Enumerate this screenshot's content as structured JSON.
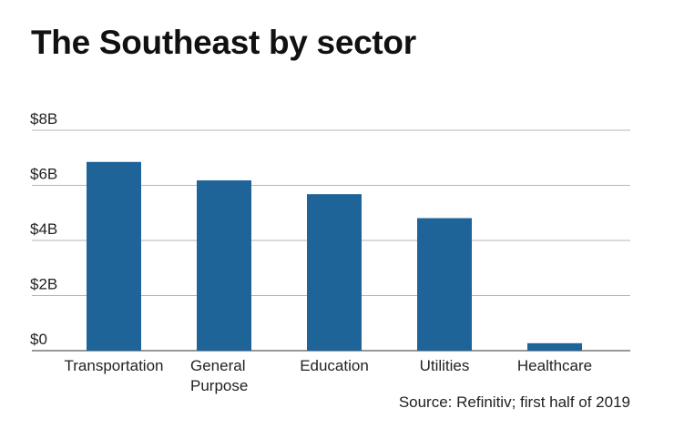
{
  "title": "The Southeast by sector",
  "source": "Source: Refinitiv; first half of 2019",
  "colors": {
    "bar": "#1f6499",
    "grid": "#b5b5b5",
    "axis": "#777777"
  },
  "chart_data": {
    "type": "bar",
    "title": "The Southeast by sector",
    "xlabel": "",
    "ylabel": "",
    "categories": [
      [
        "Transportation"
      ],
      [
        "General",
        "Purpose"
      ],
      [
        "Education"
      ],
      [
        "Utilities"
      ],
      [
        "Healthcare"
      ]
    ],
    "values": [
      6.85,
      6.18,
      5.68,
      4.81,
      0.27
    ],
    "unit": "billion USD",
    "ylim": [
      0,
      8
    ],
    "yticks": [
      0,
      2,
      4,
      6,
      8
    ],
    "ytick_labels": [
      "$0",
      "$2B",
      "$4B",
      "$6B",
      "$8B"
    ],
    "grid": true
  }
}
